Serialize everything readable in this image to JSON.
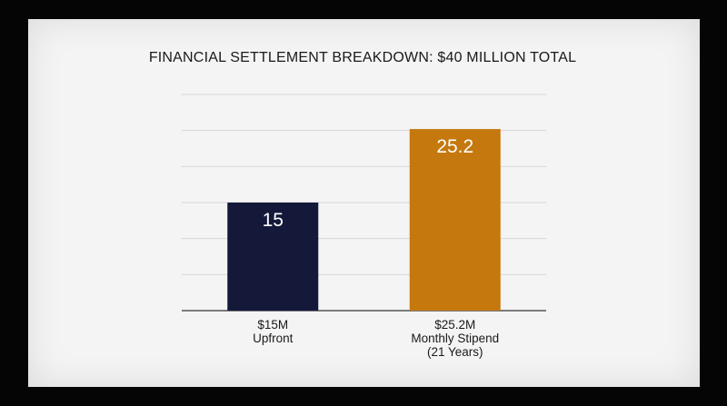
{
  "chart_data": {
    "type": "bar",
    "title": "FINANCIAL SETTLEMENT BREAKDOWN: $40 MILLION TOTAL",
    "categories": [
      [
        "$15M",
        "Upfront"
      ],
      [
        "$25.2M",
        "Monthly Stipend",
        "(21 Years)"
      ]
    ],
    "values": [
      15,
      25.2
    ],
    "value_labels": [
      "15",
      "25.2"
    ],
    "colors": [
      "#14193a",
      "#c4780e"
    ],
    "ylim": [
      0,
      30
    ],
    "grid": true,
    "xlabel": "",
    "ylabel": ""
  }
}
